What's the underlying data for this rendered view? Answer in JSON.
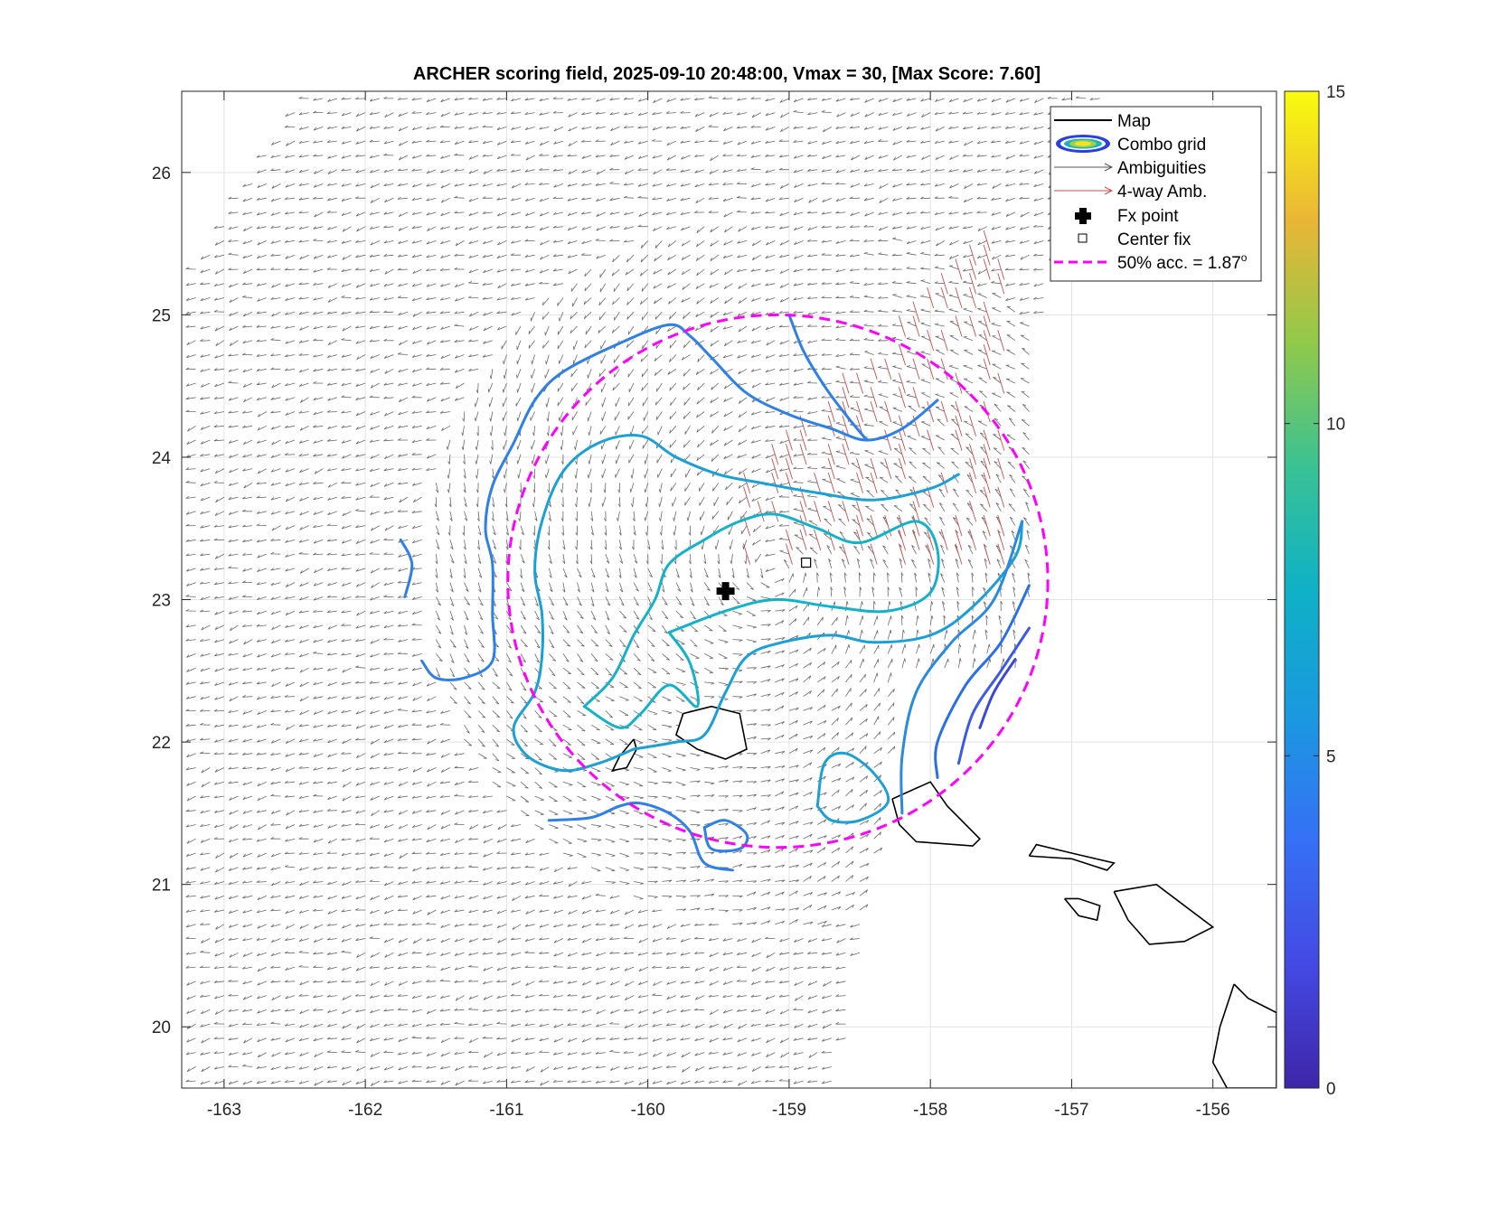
{
  "chart_data": {
    "type": "contour",
    "title": "ARCHER scoring field, 2025-09-10 20:48:00, Vmax = 30, [Max Score: 7.60]",
    "xlabel": "",
    "ylabel": "",
    "xlim": [
      -163.3,
      -155.55
    ],
    "ylim": [
      19.57,
      26.57
    ],
    "xticks": [
      -163,
      -162,
      -161,
      -160,
      -159,
      -158,
      -157,
      -156
    ],
    "yticks": [
      20,
      21,
      22,
      23,
      24,
      25,
      26
    ],
    "grid": true,
    "colorbar": {
      "range": [
        0,
        15
      ],
      "ticks": [
        0,
        5,
        10,
        15
      ],
      "colormap": "parula"
    },
    "legend": {
      "placement": "top-right",
      "entries": [
        {
          "label": "Map",
          "style": "line",
          "color": "#000000"
        },
        {
          "label": "Combo grid",
          "style": "contour-ellipse",
          "color": "#2b3ee0"
        },
        {
          "label": "Ambiguities",
          "style": "arrow",
          "color": "#555555"
        },
        {
          "label": "4-way Amb.",
          "style": "arrow",
          "color": "#c0504d"
        },
        {
          "label": "Fx point",
          "style": "plus-marker",
          "color": "#000000"
        },
        {
          "label": "Center fix",
          "style": "square-marker",
          "color": "#000000"
        },
        {
          "label": "50% acc. = 1.87",
          "sup": "o",
          "style": "dashed",
          "color": "#ff00ff"
        }
      ]
    },
    "fx_point": {
      "lon": -159.45,
      "lat": 23.06
    },
    "center_fix": {
      "lon": -158.88,
      "lat": 23.26
    },
    "accuracy_circle": {
      "center_lon": -159.08,
      "center_lat": 23.13,
      "radius_deg": 1.87
    },
    "contours": [
      {
        "level": 5.4,
        "color": "#2f7fe8",
        "points": [
          [
            -161.6,
            22.57
          ],
          [
            -161.5,
            22.45
          ],
          [
            -161.3,
            22.45
          ],
          [
            -161.1,
            22.57
          ],
          [
            -161.1,
            22.9
          ],
          [
            -161.1,
            23.25
          ],
          [
            -161.15,
            23.5
          ],
          [
            -161.1,
            23.8
          ],
          [
            -160.95,
            24.1
          ],
          [
            -160.8,
            24.4
          ],
          [
            -160.6,
            24.6
          ],
          [
            -160.2,
            24.8
          ],
          [
            -159.85,
            24.93
          ],
          [
            -159.7,
            24.85
          ],
          [
            -159.55,
            24.7
          ],
          [
            -159.3,
            24.45
          ],
          [
            -159.0,
            24.3
          ],
          [
            -158.7,
            24.2
          ],
          [
            -158.45,
            24.12
          ],
          [
            -158.2,
            24.2
          ],
          [
            -157.95,
            24.4
          ]
        ]
      },
      {
        "level": 5.7,
        "color": "#2f7fe8",
        "points": [
          [
            -159.0,
            25.0
          ],
          [
            -158.9,
            24.75
          ],
          [
            -158.75,
            24.5
          ],
          [
            -158.6,
            24.3
          ],
          [
            -158.45,
            24.12
          ]
        ]
      },
      {
        "level": 5.7,
        "color": "#2f7fe8",
        "points": [
          [
            -161.75,
            23.42
          ],
          [
            -161.67,
            23.25
          ],
          [
            -161.72,
            23.02
          ]
        ]
      },
      {
        "level": 6.2,
        "color": "#1aa0d6",
        "points": [
          [
            -160.1,
            21.95
          ],
          [
            -160.35,
            21.85
          ],
          [
            -160.6,
            21.8
          ],
          [
            -160.85,
            21.9
          ],
          [
            -160.95,
            22.1
          ],
          [
            -160.8,
            22.35
          ],
          [
            -160.75,
            22.6
          ],
          [
            -160.75,
            22.9
          ],
          [
            -160.8,
            23.2
          ],
          [
            -160.75,
            23.55
          ],
          [
            -160.6,
            23.9
          ],
          [
            -160.35,
            24.1
          ],
          [
            -160.05,
            24.15
          ],
          [
            -159.8,
            24.0
          ],
          [
            -159.5,
            23.88
          ],
          [
            -159.2,
            23.82
          ],
          [
            -158.8,
            23.75
          ],
          [
            -158.4,
            23.7
          ],
          [
            -158.0,
            23.78
          ],
          [
            -157.8,
            23.88
          ]
        ]
      },
      {
        "level": 6.2,
        "color": "#1aa0d6",
        "points": [
          [
            -160.1,
            21.95
          ],
          [
            -159.8,
            22.0
          ],
          [
            -159.6,
            22.05
          ],
          [
            -159.45,
            22.35
          ],
          [
            -159.3,
            22.6
          ],
          [
            -159.05,
            22.7
          ],
          [
            -158.7,
            22.75
          ],
          [
            -158.4,
            22.7
          ],
          [
            -158.0,
            22.75
          ],
          [
            -157.7,
            22.95
          ],
          [
            -157.4,
            23.3
          ],
          [
            -157.35,
            23.55
          ]
        ]
      },
      {
        "level": 5.8,
        "color": "#2a89e0",
        "points": [
          [
            -157.35,
            23.55
          ],
          [
            -157.55,
            23.0
          ],
          [
            -157.85,
            22.7
          ],
          [
            -158.1,
            22.35
          ],
          [
            -158.2,
            21.9
          ],
          [
            -158.2,
            21.5
          ]
        ]
      },
      {
        "level": 6.4,
        "color": "#1aa0d6",
        "points": [
          [
            -158.8,
            21.55
          ],
          [
            -158.75,
            21.85
          ],
          [
            -158.6,
            21.92
          ],
          [
            -158.4,
            21.78
          ],
          [
            -158.3,
            21.58
          ],
          [
            -158.5,
            21.45
          ],
          [
            -158.7,
            21.45
          ],
          [
            -158.8,
            21.55
          ]
        ]
      },
      {
        "level": 5.5,
        "color": "#2f7fe8",
        "points": [
          [
            -160.7,
            21.45
          ],
          [
            -160.4,
            21.47
          ],
          [
            -160.2,
            21.55
          ],
          [
            -160.05,
            21.57
          ],
          [
            -159.85,
            21.5
          ],
          [
            -159.7,
            21.37
          ],
          [
            -159.6,
            21.15
          ],
          [
            -159.4,
            21.1
          ]
        ]
      },
      {
        "level": 5.5,
        "color": "#2f7fe8",
        "points": [
          [
            -159.6,
            21.4
          ],
          [
            -159.45,
            21.45
          ],
          [
            -159.3,
            21.35
          ],
          [
            -159.35,
            21.25
          ],
          [
            -159.55,
            21.25
          ],
          [
            -159.6,
            21.4
          ]
        ]
      },
      {
        "level": 7.0,
        "color": "#14b2c9",
        "points": [
          [
            -160.45,
            22.25
          ],
          [
            -160.25,
            22.45
          ],
          [
            -160.1,
            22.75
          ],
          [
            -159.95,
            23.0
          ],
          [
            -159.85,
            23.25
          ],
          [
            -159.6,
            23.42
          ],
          [
            -159.35,
            23.55
          ],
          [
            -159.1,
            23.6
          ],
          [
            -158.8,
            23.5
          ],
          [
            -158.5,
            23.4
          ],
          [
            -158.1,
            23.55
          ],
          [
            -157.95,
            23.35
          ],
          [
            -158.0,
            23.05
          ],
          [
            -158.3,
            22.92
          ],
          [
            -158.7,
            22.95
          ],
          [
            -159.1,
            23.0
          ],
          [
            -159.45,
            22.92
          ],
          [
            -159.85,
            22.77
          ]
        ]
      },
      {
        "level": 7.0,
        "color": "#14b2c9",
        "points": [
          [
            -159.85,
            22.77
          ],
          [
            -159.7,
            22.55
          ],
          [
            -159.65,
            22.25
          ],
          [
            -159.85,
            22.4
          ],
          [
            -160.05,
            22.2
          ],
          [
            -160.2,
            22.1
          ],
          [
            -160.45,
            22.25
          ]
        ]
      },
      {
        "level": 4.5,
        "color": "#2b6fe8",
        "points": [
          [
            -157.3,
            23.1
          ],
          [
            -157.5,
            22.7
          ],
          [
            -157.75,
            22.4
          ],
          [
            -157.95,
            22.0
          ],
          [
            -157.95,
            21.75
          ]
        ]
      },
      {
        "level": 4.0,
        "color": "#3d5ae6",
        "points": [
          [
            -157.3,
            22.8
          ],
          [
            -157.5,
            22.5
          ],
          [
            -157.7,
            22.2
          ],
          [
            -157.8,
            21.85
          ]
        ]
      },
      {
        "level": 3.5,
        "color": "#3a47dc",
        "points": [
          [
            -157.4,
            22.58
          ],
          [
            -157.55,
            22.35
          ],
          [
            -157.65,
            22.1
          ]
        ]
      }
    ],
    "coastlines": [
      {
        "name": "Kauai",
        "points": [
          [
            -159.75,
            22.2
          ],
          [
            -159.55,
            22.25
          ],
          [
            -159.35,
            22.2
          ],
          [
            -159.3,
            21.95
          ],
          [
            -159.45,
            21.88
          ],
          [
            -159.65,
            21.95
          ],
          [
            -159.8,
            22.05
          ],
          [
            -159.75,
            22.2
          ]
        ]
      },
      {
        "name": "Niihau",
        "points": [
          [
            -160.1,
            22.02
          ],
          [
            -160.2,
            21.9
          ],
          [
            -160.25,
            21.8
          ],
          [
            -160.15,
            21.82
          ],
          [
            -160.08,
            21.95
          ],
          [
            -160.1,
            22.02
          ]
        ]
      },
      {
        "name": "Oahu",
        "points": [
          [
            -158.27,
            21.6
          ],
          [
            -158.0,
            21.72
          ],
          [
            -157.88,
            21.55
          ],
          [
            -157.65,
            21.32
          ],
          [
            -157.7,
            21.27
          ],
          [
            -158.1,
            21.3
          ],
          [
            -158.22,
            21.42
          ],
          [
            -158.27,
            21.6
          ]
        ]
      },
      {
        "name": "Molokai",
        "points": [
          [
            -157.3,
            21.2
          ],
          [
            -157.0,
            21.18
          ],
          [
            -156.75,
            21.1
          ],
          [
            -156.7,
            21.15
          ],
          [
            -157.0,
            21.22
          ],
          [
            -157.25,
            21.28
          ],
          [
            -157.3,
            21.2
          ]
        ]
      },
      {
        "name": "Lanai",
        "points": [
          [
            -157.05,
            20.9
          ],
          [
            -156.95,
            20.78
          ],
          [
            -156.82,
            20.75
          ],
          [
            -156.8,
            20.85
          ],
          [
            -156.95,
            20.9
          ],
          [
            -157.05,
            20.9
          ]
        ]
      },
      {
        "name": "Maui",
        "points": [
          [
            -156.7,
            20.95
          ],
          [
            -156.4,
            21.0
          ],
          [
            -156.2,
            20.85
          ],
          [
            -156.0,
            20.7
          ],
          [
            -156.2,
            20.6
          ],
          [
            -156.45,
            20.58
          ],
          [
            -156.6,
            20.75
          ],
          [
            -156.7,
            20.95
          ]
        ]
      },
      {
        "name": "Hawaii",
        "points": [
          [
            -155.85,
            20.3
          ],
          [
            -155.75,
            20.2
          ],
          [
            -155.55,
            20.1
          ],
          [
            -155.55,
            19.57
          ],
          [
            -155.9,
            19.57
          ],
          [
            -156.0,
            19.75
          ],
          [
            -155.95,
            20.0
          ],
          [
            -155.85,
            20.3
          ]
        ]
      }
    ]
  }
}
